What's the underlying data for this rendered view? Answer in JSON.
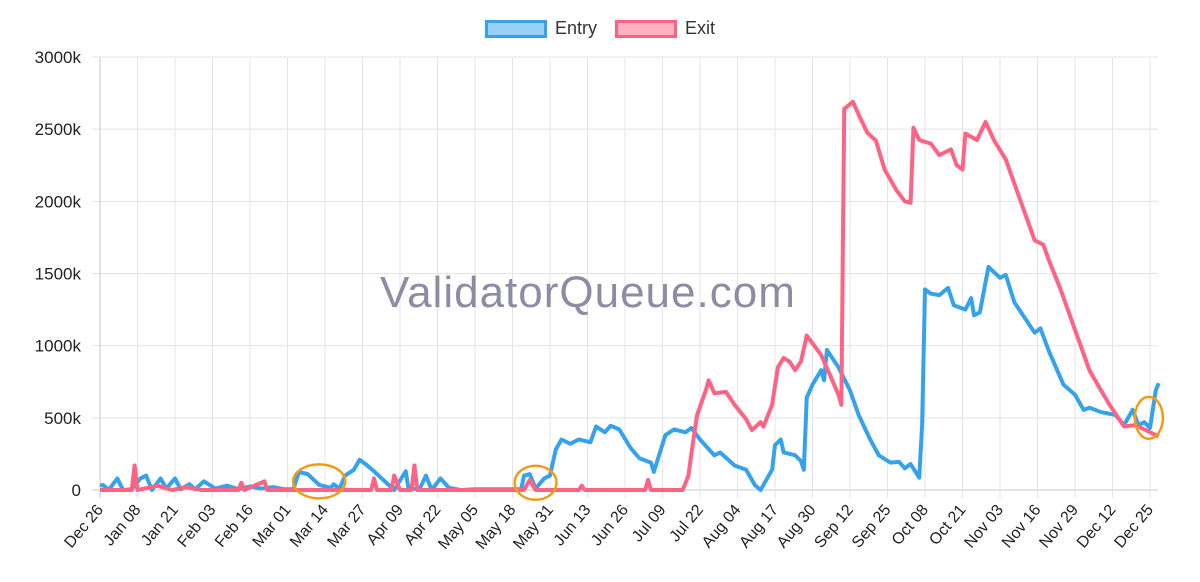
{
  "chart_data": {
    "type": "line",
    "title": "",
    "xlabel": "",
    "ylabel": "",
    "watermark": "ValidatorQueue.com",
    "ylim": [
      0,
      3000000
    ],
    "y_ticks": [
      "0",
      "500k",
      "1000k",
      "1500k",
      "2000k",
      "2500k",
      "3000k"
    ],
    "y_tick_values": [
      0,
      500000,
      1000000,
      1500000,
      2000000,
      2500000,
      3000000
    ],
    "x_range": [
      "Dec 26",
      "Dec 28"
    ],
    "x_ticks": [
      "Dec 26",
      "Jan 08",
      "Jan 21",
      "Feb 03",
      "Feb 16",
      "Mar 01",
      "Mar 14",
      "Mar 27",
      "Apr 09",
      "Apr 22",
      "May 05",
      "May 18",
      "May 31",
      "Jun 13",
      "Jun 26",
      "Jul 09",
      "Jul 22",
      "Aug 04",
      "Aug 17",
      "Aug 30",
      "Sep 12",
      "Sep 25",
      "Oct 08",
      "Oct 21",
      "Nov 03",
      "Nov 16",
      "Nov 29",
      "Dec 12",
      "Dec 25"
    ],
    "grid": true,
    "legend_position": "top",
    "series": [
      {
        "name": "Entry",
        "color": "#36a2eb",
        "fill": "#9ad0f5",
        "points": [
          [
            "Dec 26",
            30000
          ],
          [
            "Dec 27",
            35000
          ],
          [
            "Dec 29",
            0
          ],
          [
            "Jan 01",
            80000
          ],
          [
            "Jan 03",
            0
          ],
          [
            "Jan 06",
            5000
          ],
          [
            "Jan 09",
            80000
          ],
          [
            "Jan 11",
            100000
          ],
          [
            "Jan 13",
            0
          ],
          [
            "Jan 16",
            80000
          ],
          [
            "Jan 18",
            10000
          ],
          [
            "Jan 21",
            80000
          ],
          [
            "Jan 23",
            5000
          ],
          [
            "Jan 26",
            40000
          ],
          [
            "Jan 28",
            5000
          ],
          [
            "Jan 31",
            60000
          ],
          [
            "Feb 04",
            10000
          ],
          [
            "Feb 08",
            30000
          ],
          [
            "Feb 12",
            5000
          ],
          [
            "Feb 16",
            25000
          ],
          [
            "Feb 20",
            10000
          ],
          [
            "Feb 24",
            20000
          ],
          [
            "Feb 28",
            5000
          ],
          [
            "Mar 03",
            5000
          ],
          [
            "Mar 05",
            125000
          ],
          [
            "Mar 08",
            110000
          ],
          [
            "Mar 12",
            35000
          ],
          [
            "Mar 16",
            15000
          ],
          [
            "Mar 17",
            40000
          ],
          [
            "Mar 19",
            10000
          ],
          [
            "Mar 21",
            100000
          ],
          [
            "Mar 24",
            140000
          ],
          [
            "Mar 26",
            210000
          ],
          [
            "Mar 28",
            180000
          ],
          [
            "Mar 31",
            130000
          ],
          [
            "Apr 04",
            55000
          ],
          [
            "Apr 07",
            0
          ],
          [
            "Apr 11",
            130000
          ],
          [
            "Apr 12",
            0
          ],
          [
            "Apr 16",
            15000
          ],
          [
            "Apr 18",
            100000
          ],
          [
            "Apr 20",
            0
          ],
          [
            "Apr 23",
            80000
          ],
          [
            "Apr 26",
            15000
          ],
          [
            "Apr 30",
            0
          ],
          [
            "May 05",
            5000
          ],
          [
            "May 15",
            5000
          ],
          [
            "May 21",
            5000
          ],
          [
            "May 22",
            100000
          ],
          [
            "May 24",
            110000
          ],
          [
            "May 26",
            10000
          ],
          [
            "May 29",
            80000
          ],
          [
            "May 31",
            100000
          ],
          [
            "Jun 02",
            280000
          ],
          [
            "Jun 04",
            350000
          ],
          [
            "Jun 07",
            320000
          ],
          [
            "Jun 10",
            350000
          ],
          [
            "Jun 14",
            330000
          ],
          [
            "Jun 16",
            440000
          ],
          [
            "Jun 19",
            400000
          ],
          [
            "Jun 21",
            445000
          ],
          [
            "Jun 24",
            420000
          ],
          [
            "Jun 28",
            290000
          ],
          [
            "Jul 01",
            220000
          ],
          [
            "Jul 05",
            190000
          ],
          [
            "Jul 06",
            125000
          ],
          [
            "Jul 10",
            380000
          ],
          [
            "Jul 13",
            420000
          ],
          [
            "Jul 17",
            400000
          ],
          [
            "Jul 19",
            430000
          ],
          [
            "Jul 22",
            350000
          ],
          [
            "Jul 27",
            240000
          ],
          [
            "Jul 29",
            260000
          ],
          [
            "Aug 03",
            170000
          ],
          [
            "Aug 07",
            140000
          ],
          [
            "Aug 10",
            35000
          ],
          [
            "Aug 12",
            0
          ],
          [
            "Aug 13",
            35000
          ],
          [
            "Aug 16",
            140000
          ],
          [
            "Aug 17",
            310000
          ],
          [
            "Aug 19",
            350000
          ],
          [
            "Aug 20",
            260000
          ],
          [
            "Aug 24",
            240000
          ],
          [
            "Aug 26",
            200000
          ],
          [
            "Aug 27",
            140000
          ],
          [
            "Aug 28",
            640000
          ],
          [
            "Aug 30",
            730000
          ],
          [
            "Sep 02",
            830000
          ],
          [
            "Sep 03",
            760000
          ],
          [
            "Sep 04",
            970000
          ],
          [
            "Sep 08",
            850000
          ],
          [
            "Sep 12",
            690000
          ],
          [
            "Sep 15",
            520000
          ],
          [
            "Sep 19",
            350000
          ],
          [
            "Sep 22",
            240000
          ],
          [
            "Sep 26",
            190000
          ],
          [
            "Sep 29",
            195000
          ],
          [
            "Oct 01",
            150000
          ],
          [
            "Oct 03",
            180000
          ],
          [
            "Oct 06",
            85000
          ],
          [
            "Oct 07",
            450000
          ],
          [
            "Oct 08",
            1390000
          ],
          [
            "Oct 10",
            1360000
          ],
          [
            "Oct 13",
            1350000
          ],
          [
            "Oct 16",
            1400000
          ],
          [
            "Oct 18",
            1280000
          ],
          [
            "Oct 22",
            1250000
          ],
          [
            "Oct 24",
            1330000
          ],
          [
            "Oct 25",
            1210000
          ],
          [
            "Oct 27",
            1230000
          ],
          [
            "Oct 30",
            1545000
          ],
          [
            "Nov 03",
            1470000
          ],
          [
            "Nov 05",
            1490000
          ],
          [
            "Nov 08",
            1300000
          ],
          [
            "Nov 12",
            1180000
          ],
          [
            "Nov 15",
            1090000
          ],
          [
            "Nov 17",
            1120000
          ],
          [
            "Nov 20",
            960000
          ],
          [
            "Nov 25",
            730000
          ],
          [
            "Nov 29",
            660000
          ],
          [
            "Dec 02",
            555000
          ],
          [
            "Dec 04",
            570000
          ],
          [
            "Dec 08",
            540000
          ],
          [
            "Dec 13",
            520000
          ],
          [
            "Dec 16",
            450000
          ],
          [
            "Dec 19",
            555000
          ],
          [
            "Dec 21",
            450000
          ],
          [
            "Dec 23",
            470000
          ],
          [
            "Dec 25",
            430000
          ],
          [
            "Dec 27",
            690000
          ],
          [
            "Dec 28",
            740000
          ]
        ]
      },
      {
        "name": "Exit",
        "color": "#ff6384",
        "fill": "#ffb1c1",
        "points": [
          [
            "Dec 26",
            0
          ],
          [
            "Dec 30",
            0
          ],
          [
            "Jan 06",
            0
          ],
          [
            "Jan 07",
            170000
          ],
          [
            "Jan 08",
            0
          ],
          [
            "Jan 15",
            30000
          ],
          [
            "Jan 20",
            0
          ],
          [
            "Jan 25",
            20000
          ],
          [
            "Jan 30",
            0
          ],
          [
            "Feb 12",
            0
          ],
          [
            "Feb 13",
            50000
          ],
          [
            "Feb 14",
            0
          ],
          [
            "Feb 21",
            60000
          ],
          [
            "Feb 22",
            0
          ],
          [
            "Mar 30",
            0
          ],
          [
            "Mar 31",
            80000
          ],
          [
            "Apr 01",
            0
          ],
          [
            "Apr 06",
            0
          ],
          [
            "Apr 07",
            100000
          ],
          [
            "Apr 09",
            0
          ],
          [
            "Apr 13",
            0
          ],
          [
            "Apr 14",
            170000
          ],
          [
            "Apr 15",
            0
          ],
          [
            "May 22",
            0
          ],
          [
            "May 24",
            70000
          ],
          [
            "May 26",
            0
          ],
          [
            "Jun 10",
            0
          ],
          [
            "Jun 11",
            30000
          ],
          [
            "Jun 12",
            0
          ],
          [
            "Jul 03",
            0
          ],
          [
            "Jul 04",
            70000
          ],
          [
            "Jul 05",
            0
          ],
          [
            "Jul 16",
            0
          ],
          [
            "Jul 18",
            100000
          ],
          [
            "Jul 19",
            250000
          ],
          [
            "Jul 21",
            520000
          ],
          [
            "Jul 24",
            690000
          ],
          [
            "Jul 25",
            760000
          ],
          [
            "Jul 27",
            670000
          ],
          [
            "Jul 31",
            680000
          ],
          [
            "Aug 03",
            590000
          ],
          [
            "Aug 07",
            490000
          ],
          [
            "Aug 09",
            415000
          ],
          [
            "Aug 12",
            470000
          ],
          [
            "Aug 13",
            440000
          ],
          [
            "Aug 16",
            590000
          ],
          [
            "Aug 18",
            850000
          ],
          [
            "Aug 20",
            915000
          ],
          [
            "Aug 22",
            890000
          ],
          [
            "Aug 24",
            830000
          ],
          [
            "Aug 26",
            890000
          ],
          [
            "Aug 28",
            1070000
          ],
          [
            "Sep 02",
            935000
          ],
          [
            "Sep 05",
            800000
          ],
          [
            "Sep 08",
            660000
          ],
          [
            "Sep 09",
            590000
          ],
          [
            "Sep 10",
            2640000
          ],
          [
            "Sep 13",
            2690000
          ],
          [
            "Sep 15",
            2600000
          ],
          [
            "Sep 18",
            2475000
          ],
          [
            "Sep 21",
            2420000
          ],
          [
            "Sep 24",
            2220000
          ],
          [
            "Sep 28",
            2080000
          ],
          [
            "Oct 01",
            2000000
          ],
          [
            "Oct 03",
            1990000
          ],
          [
            "Oct 04",
            2510000
          ],
          [
            "Oct 06",
            2425000
          ],
          [
            "Oct 10",
            2400000
          ],
          [
            "Oct 13",
            2320000
          ],
          [
            "Oct 17",
            2360000
          ],
          [
            "Oct 19",
            2250000
          ],
          [
            "Oct 21",
            2220000
          ],
          [
            "Oct 22",
            2470000
          ],
          [
            "Oct 26",
            2425000
          ],
          [
            "Oct 29",
            2550000
          ],
          [
            "Nov 01",
            2420000
          ],
          [
            "Nov 05",
            2290000
          ],
          [
            "Nov 10",
            2010000
          ],
          [
            "Nov 15",
            1730000
          ],
          [
            "Nov 18",
            1700000
          ],
          [
            "Nov 20",
            1590000
          ],
          [
            "Nov 24",
            1390000
          ],
          [
            "Nov 29",
            1110000
          ],
          [
            "Dec 04",
            830000
          ],
          [
            "Dec 08",
            690000
          ],
          [
            "Dec 11",
            590000
          ],
          [
            "Dec 16",
            440000
          ],
          [
            "Dec 20",
            450000
          ],
          [
            "Dec 28",
            370000
          ]
        ]
      }
    ],
    "annotations": [
      {
        "shape": "ellipse",
        "color": "#f39c12",
        "date": "Mar 12",
        "value": 60000
      },
      {
        "shape": "ellipse",
        "color": "#f39c12",
        "date": "May 26",
        "value": 50000
      },
      {
        "shape": "ellipse",
        "color": "#f39c12",
        "date": "Dec 26",
        "value": 500000
      }
    ]
  }
}
